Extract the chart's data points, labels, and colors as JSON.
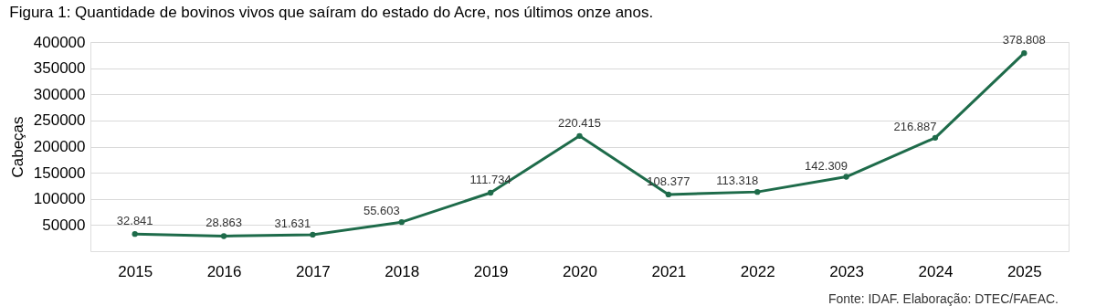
{
  "chart_data": {
    "type": "line",
    "title": "Figura 1: Quantidade de bovinos vivos que saíram do estado do Acre, nos últimos onze anos.",
    "ylabel": "Cabeças",
    "categories": [
      "2015",
      "2016",
      "2017",
      "2018",
      "2019",
      "2020",
      "2021",
      "2022",
      "2023",
      "2024",
      "2025"
    ],
    "series": [
      {
        "color": "#1e6b4a",
        "values": [
          32841,
          28863,
          31631,
          55603,
          111734,
          220415,
          108377,
          113318,
          142309,
          216887,
          378808
        ],
        "value_labels": [
          "32.841",
          "28.863",
          "31.631",
          "55.603",
          "111.734",
          "220.415",
          "108.377",
          "113.318",
          "142.309",
          "216.887",
          "378.808"
        ]
      }
    ],
    "ylim": [
      0,
      400000
    ],
    "yticks": [
      50000,
      100000,
      150000,
      200000,
      250000,
      300000,
      350000,
      400000
    ],
    "grid": "y",
    "legend": false,
    "marker": "circle",
    "line_style": "solid",
    "annotations": [
      "Fonte: IDAF. Elaboração: DTEC/FAEAC."
    ]
  }
}
